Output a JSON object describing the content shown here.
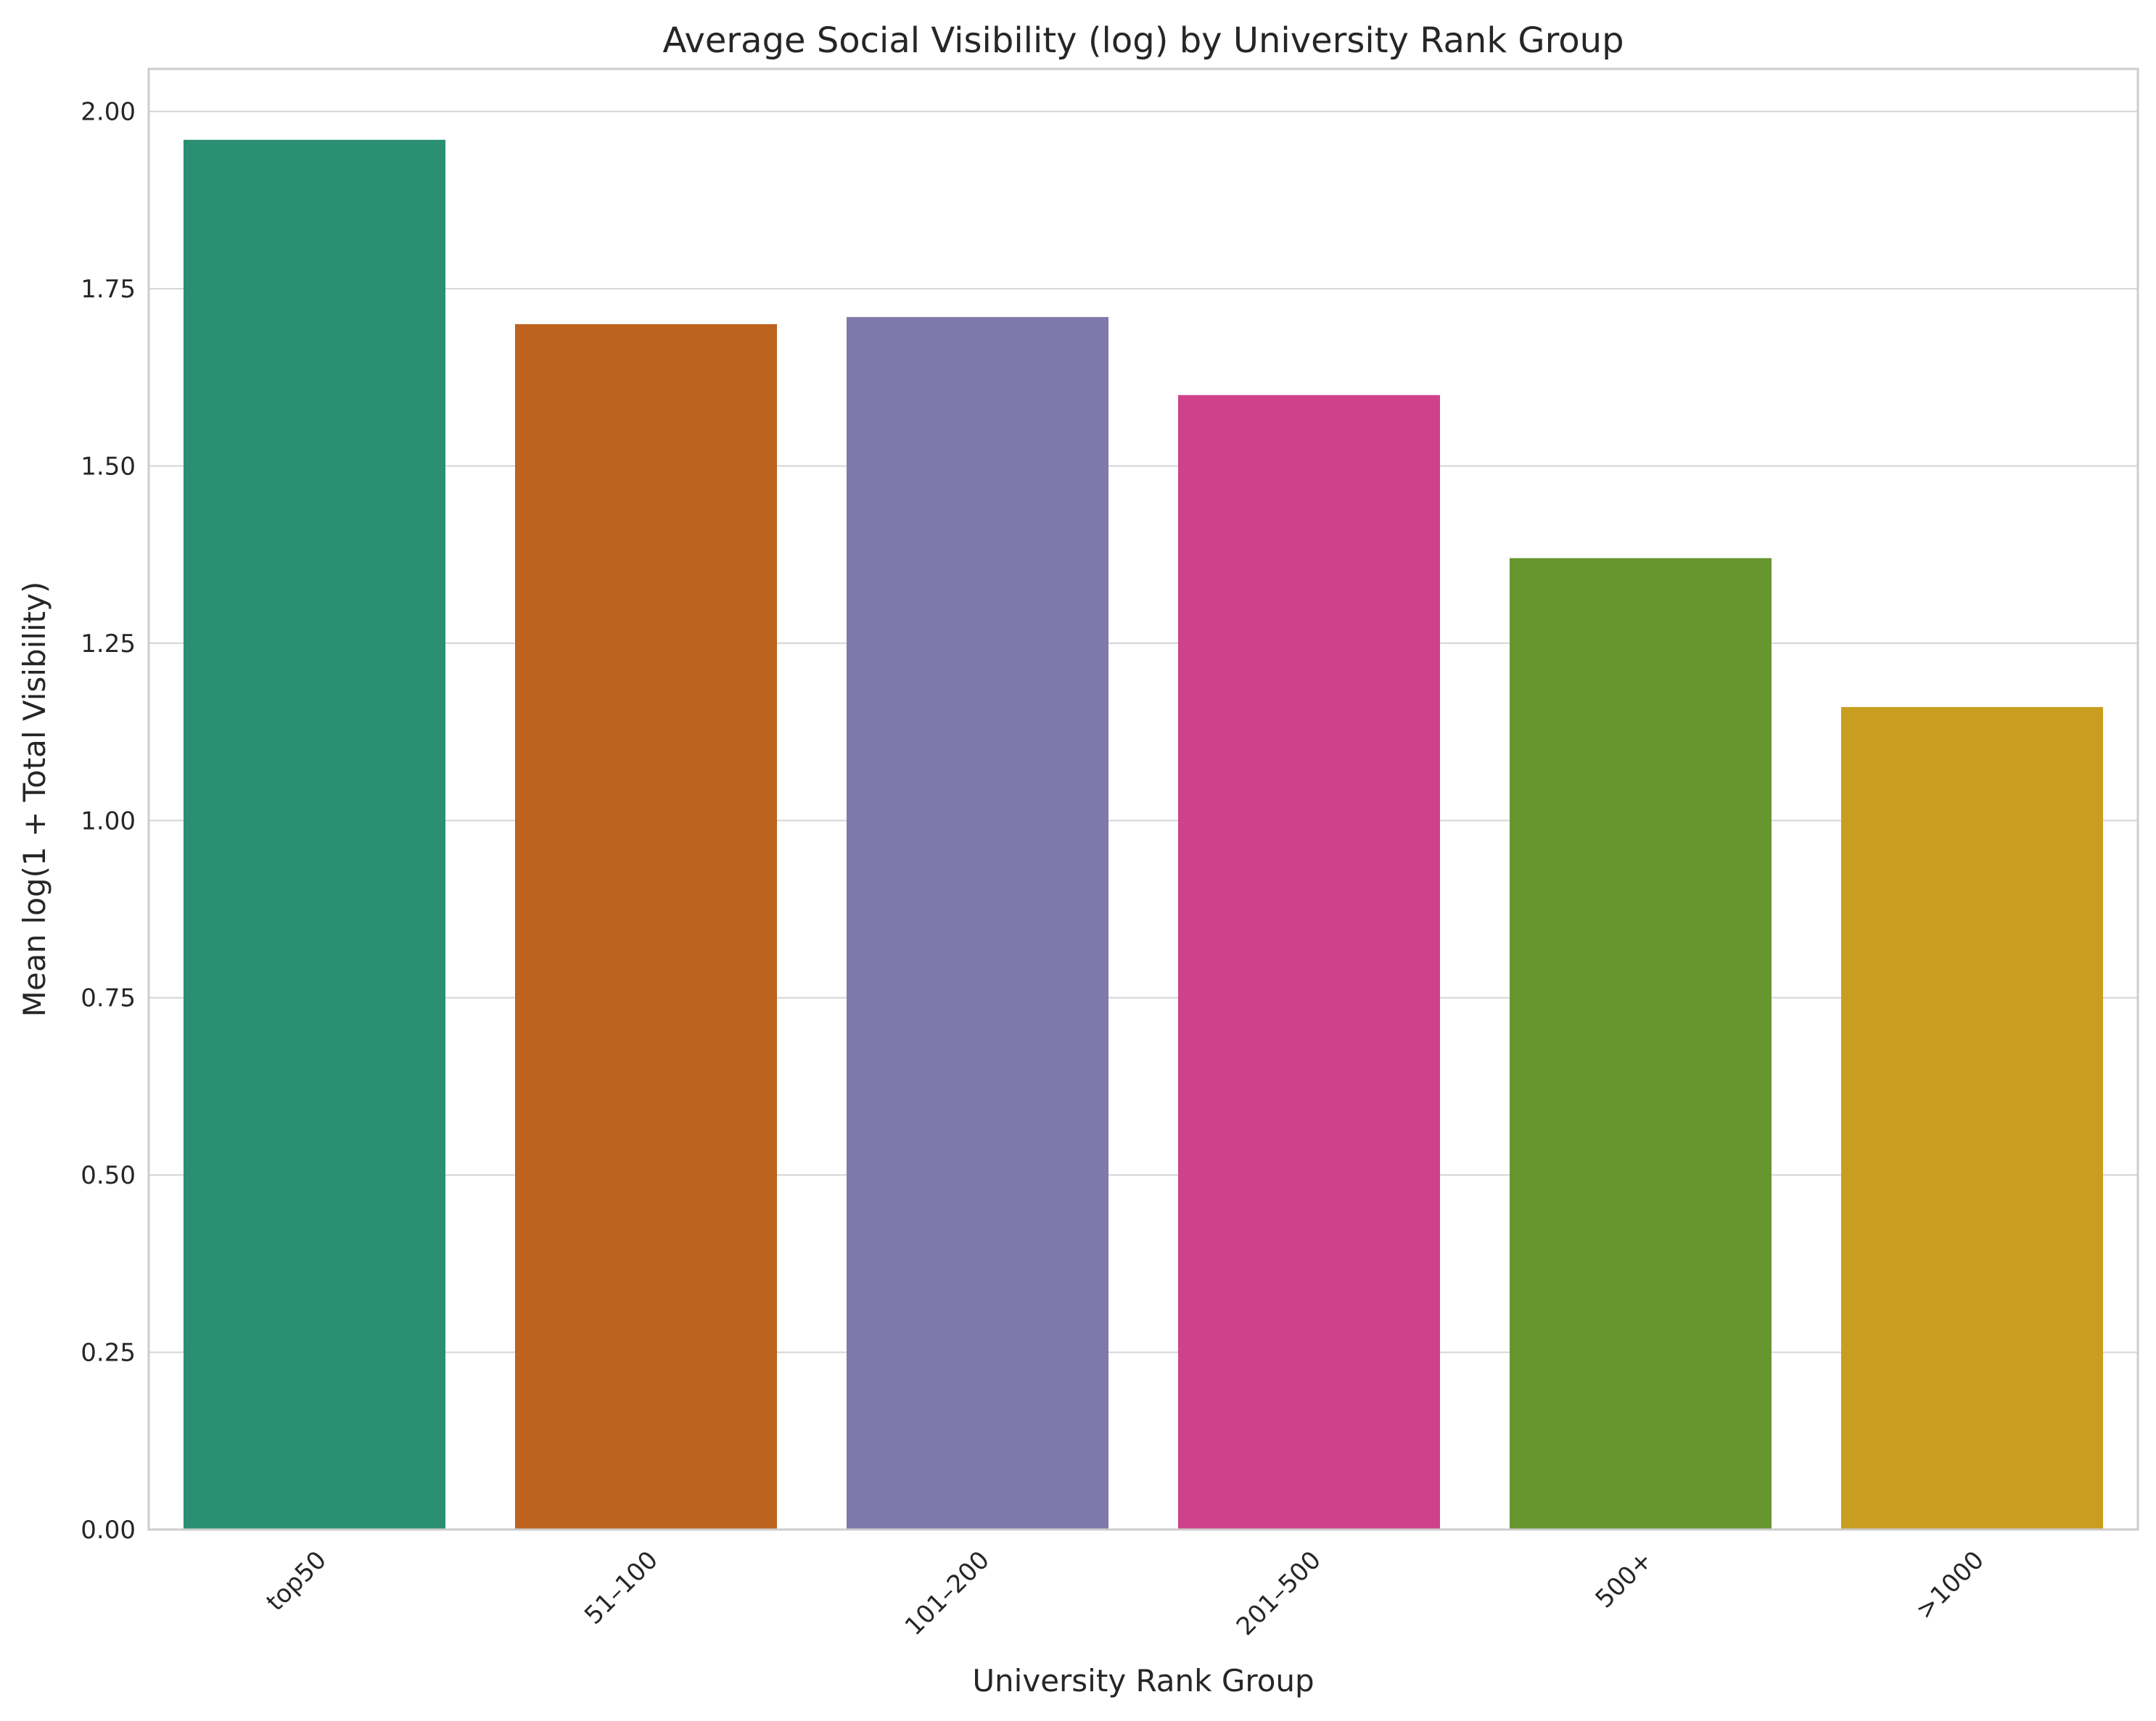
{
  "chart_data": {
    "type": "bar",
    "title": "Average Social Visibility (log) by University Rank Group",
    "xlabel": "University Rank Group",
    "ylabel": "Mean log(1 + Total Visibility)",
    "categories": [
      "top50",
      "51–100",
      "101–200",
      "201–500",
      "500+",
      ">1000"
    ],
    "values": [
      1.96,
      1.7,
      1.71,
      1.6,
      1.37,
      1.16
    ],
    "colors": [
      "#2b8f71",
      "#bd621f",
      "#7e79aa",
      "#cf428b",
      "#67962f",
      "#c99d20"
    ],
    "ylim": [
      0,
      2.06
    ],
    "yticks": [
      0.0,
      0.25,
      0.5,
      0.75,
      1.0,
      1.25,
      1.5,
      1.75,
      2.0
    ],
    "ytick_labels": [
      "0.00",
      "0.25",
      "0.50",
      "0.75",
      "1.00",
      "1.25",
      "1.50",
      "1.75",
      "2.00"
    ],
    "grid": "horizontal",
    "legend": "none"
  }
}
